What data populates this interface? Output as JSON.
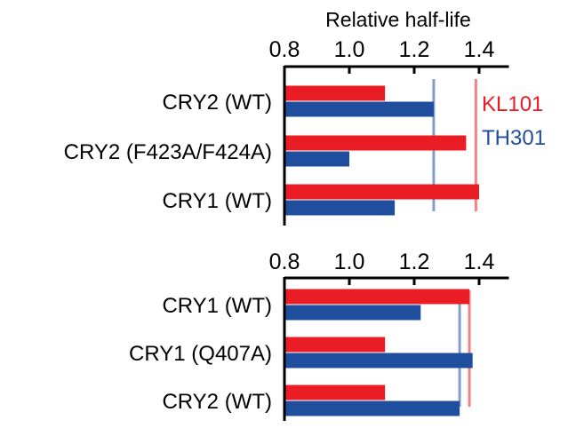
{
  "chart_data": [
    {
      "type": "bar",
      "orientation": "horizontal",
      "title": "Relative half-life",
      "xlim": [
        0.8,
        1.5
      ],
      "xticks": [
        "0.8",
        "1.0",
        "1.2",
        "1.4"
      ],
      "categories": [
        "CRY2 (WT)",
        "CRY2 (F423A/F424A)",
        "CRY1 (WT)"
      ],
      "series": [
        {
          "name": "KL101",
          "color": "#ea1c24",
          "values": [
            1.11,
            1.36,
            1.4
          ],
          "reference_line": 1.39
        },
        {
          "name": "TH301",
          "color": "#1f4e9e",
          "values": [
            1.26,
            1.0,
            1.14
          ],
          "reference_line": 1.26
        }
      ],
      "legend": "right"
    },
    {
      "type": "bar",
      "orientation": "horizontal",
      "xlim": [
        0.8,
        1.5
      ],
      "xticks": [
        "0.8",
        "1.0",
        "1.2",
        "1.4"
      ],
      "categories": [
        "CRY1 (WT)",
        "CRY1 (Q407A)",
        "CRY2 (WT)"
      ],
      "series": [
        {
          "name": "KL101",
          "color": "#ea1c24",
          "values": [
            1.37,
            1.11,
            1.11
          ],
          "reference_line": 1.37
        },
        {
          "name": "TH301",
          "color": "#1f4e9e",
          "values": [
            1.22,
            1.38,
            1.34
          ],
          "reference_line": 1.34
        }
      ]
    }
  ]
}
